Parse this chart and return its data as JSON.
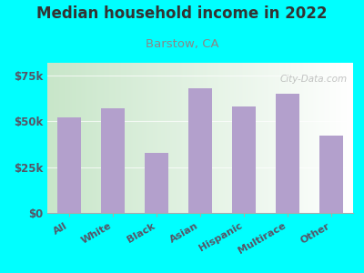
{
  "title": "Median household income in 2022",
  "subtitle": "Barstow, CA",
  "categories": [
    "All",
    "White",
    "Black",
    "Asian",
    "Hispanic",
    "Multirace",
    "Other"
  ],
  "values": [
    52000,
    57000,
    33000,
    68000,
    58000,
    65000,
    42000
  ],
  "bar_color": "#b3a0cc",
  "background_outer": "#00ffff",
  "bg_grad_colors": [
    "#c8e6c9",
    "#ffffff"
  ],
  "title_color": "#333333",
  "subtitle_color": "#888888",
  "tick_label_color": "#555566",
  "ytick_labels": [
    "$0",
    "$25k",
    "$50k",
    "$75k"
  ],
  "ytick_values": [
    0,
    25000,
    50000,
    75000
  ],
  "ylim": [
    0,
    82000
  ],
  "watermark": "City-Data.com"
}
